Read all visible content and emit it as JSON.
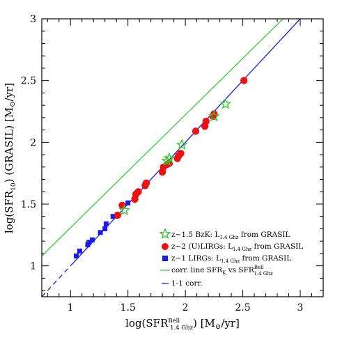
{
  "chart_data": {
    "type": "scatter",
    "title": "",
    "xlabel": {
      "main": "log(SFR",
      "sup": "Bell",
      "sub": "1.4 Ghz",
      "rest": ") [M",
      "sun": "⊙",
      "tail": "/yr]"
    },
    "ylabel": {
      "main": "log(SFR",
      "sub": "10",
      "rest": ") (GRASIL) [M",
      "sun": "⊙",
      "tail": "/yr]"
    },
    "xlim": [
      0.75,
      3.2
    ],
    "ylim": [
      0.75,
      3.0
    ],
    "xticks": [
      "1",
      "1.5",
      "2",
      "2.5",
      "3"
    ],
    "xtick_values": [
      1,
      1.5,
      2,
      2.5,
      3
    ],
    "yticks": [
      "1",
      "1.5",
      "2",
      "2.5",
      "3"
    ],
    "ytick_values": [
      1,
      1.5,
      2,
      2.5,
      3
    ],
    "grid": false,
    "legend_position": "bottom-right",
    "colors": {
      "green": "#33cc33",
      "red": "#ee1111",
      "blue": "#1a1aee"
    },
    "series": [
      {
        "name": "z~1.5 BzK: L1.4 Ghz from GRASIL",
        "legend": {
          "pre": "z~1.5 BzK: L",
          "sub": "1.4 Ghz",
          "post": " from GRASIL"
        },
        "marker": "star",
        "color": "#33cc33",
        "x": [
          1.47,
          1.84,
          1.86,
          1.97,
          2.25,
          2.35
        ],
        "y": [
          1.45,
          1.85,
          1.87,
          1.98,
          2.21,
          2.31
        ]
      },
      {
        "name": "z~2 (U)LIRGs: L1.4 Ghz from GRASIL",
        "legend": {
          "pre": "z~2 (U)LIRGs: L",
          "sub": "1.4 Ghz",
          "post": " from GRASIL"
        },
        "marker": "circle",
        "color": "#ee1111",
        "x": [
          1.41,
          1.45,
          1.56,
          1.57,
          1.59,
          1.65,
          1.66,
          1.8,
          1.81,
          1.84,
          1.86,
          1.93,
          1.94,
          1.96,
          2.09,
          2.17,
          2.18,
          2.24,
          2.25,
          2.51
        ],
        "y": [
          1.41,
          1.49,
          1.54,
          1.58,
          1.6,
          1.65,
          1.67,
          1.76,
          1.8,
          1.82,
          1.83,
          1.87,
          1.89,
          1.91,
          2.09,
          2.13,
          2.17,
          2.21,
          2.23,
          2.5
        ]
      },
      {
        "name": "z~1 LIRGs: L1.4 Ghz from GRASIL",
        "legend": {
          "pre": "z~1 LIRGs: L",
          "sub": "1.4 Ghz",
          "post": " from GRASIL"
        },
        "marker": "square",
        "color": "#1a1aee",
        "x": [
          1.05,
          1.08,
          1.15,
          1.16,
          1.19,
          1.26,
          1.3,
          1.31,
          1.37,
          1.5
        ],
        "y": [
          1.08,
          1.12,
          1.17,
          1.19,
          1.21,
          1.27,
          1.3,
          1.34,
          1.4,
          1.51
        ]
      }
    ],
    "lines": [
      {
        "name": "corr. line SFRK vs SFR1.4 Ghz Bell",
        "legend": {
          "pre": "corr. line SFR",
          "sub1": "K",
          "mid": " vs SFR",
          "sup": "Bell",
          "sub2": "1.4 Ghz"
        },
        "color": "#33cc33",
        "style": "solid",
        "x": [
          0.75,
          2.85
        ],
        "y": [
          1.08,
          3.0
        ]
      },
      {
        "name": "1-1 corr.",
        "legend": {
          "pre": "1-1 corr."
        },
        "color": "#1a1aee",
        "style": "solid",
        "x": [
          1.0,
          3.0
        ],
        "y": [
          1.0,
          3.0
        ]
      },
      {
        "name": "1-1 corr. (extrapolated)",
        "legend": {
          "pre": ""
        },
        "color": "#1a1aee",
        "style": "dashed",
        "x": [
          0.75,
          1.0
        ],
        "y": [
          0.75,
          1.0
        ]
      }
    ]
  }
}
